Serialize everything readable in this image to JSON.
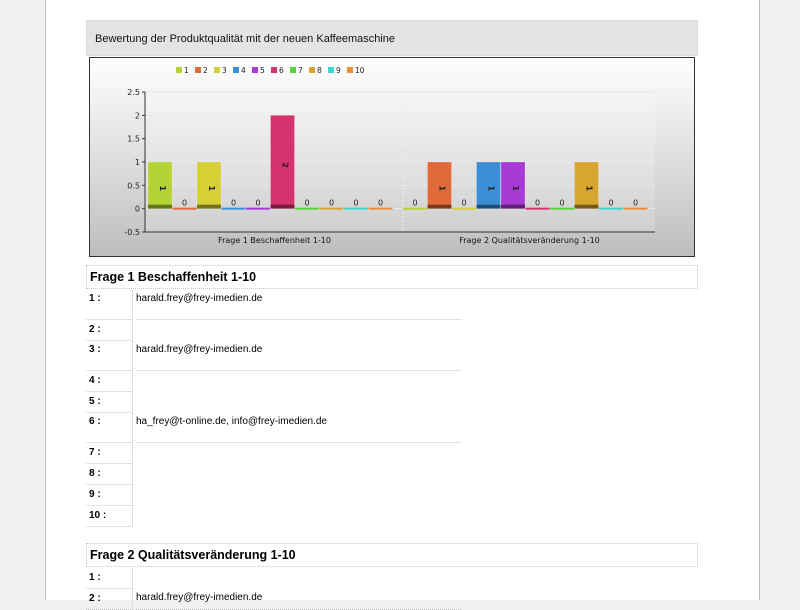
{
  "chart_title": "Bewertung der Produktqualität mit der neuen Kaffeemaschine",
  "chart_data": {
    "type": "bar",
    "legend_position": "top-left",
    "grid": true,
    "categories": [
      "Frage 1 Beschaffenheit 1-10",
      "Frage 2 Qualitätsveränderung 1-10"
    ],
    "series": [
      {
        "name": "1",
        "color": "#b5d334",
        "values": [
          1,
          0
        ]
      },
      {
        "name": "2",
        "color": "#e06a3a",
        "values": [
          0,
          1
        ]
      },
      {
        "name": "3",
        "color": "#d6cf35",
        "values": [
          1,
          0
        ]
      },
      {
        "name": "4",
        "color": "#3a8fd6",
        "values": [
          0,
          1
        ]
      },
      {
        "name": "5",
        "color": "#a83ad6",
        "values": [
          0,
          1
        ]
      },
      {
        "name": "6",
        "color": "#d6336e",
        "values": [
          2,
          0
        ]
      },
      {
        "name": "7",
        "color": "#5ad63a",
        "values": [
          0,
          0
        ]
      },
      {
        "name": "8",
        "color": "#d6a631",
        "values": [
          0,
          1
        ]
      },
      {
        "name": "9",
        "color": "#3ad6cf",
        "values": [
          0,
          0
        ]
      },
      {
        "name": "10",
        "color": "#e8913a",
        "values": [
          0,
          0
        ]
      }
    ],
    "ylim": [
      -0.5,
      2.5
    ],
    "yticks": [
      "2.5",
      "2",
      "1.5",
      "1",
      "0.5",
      "0",
      "-0.5"
    ]
  },
  "questions": [
    {
      "title": "Frage 1 Beschaffenheit 1-10",
      "answers": [
        {
          "label": "1 :",
          "value": "harald.frey@frey-imedien.de"
        },
        {
          "label": "2 :",
          "value": ""
        },
        {
          "label": "3 :",
          "value": "harald.frey@frey-imedien.de"
        },
        {
          "label": "4 :",
          "value": ""
        },
        {
          "label": "5 :",
          "value": ""
        },
        {
          "label": "6 :",
          "value": "ha_frey@t-online.de, info@frey-imedien.de"
        },
        {
          "label": "7 :",
          "value": ""
        },
        {
          "label": "8 :",
          "value": ""
        },
        {
          "label": "9 :",
          "value": ""
        },
        {
          "label": "10 :",
          "value": ""
        }
      ]
    },
    {
      "title": "Frage 2 Qualitätsveränderung 1-10",
      "answers": [
        {
          "label": "1 :",
          "value": ""
        },
        {
          "label": "2 :",
          "value": "harald.frey@frey-imedien.de"
        }
      ]
    }
  ]
}
